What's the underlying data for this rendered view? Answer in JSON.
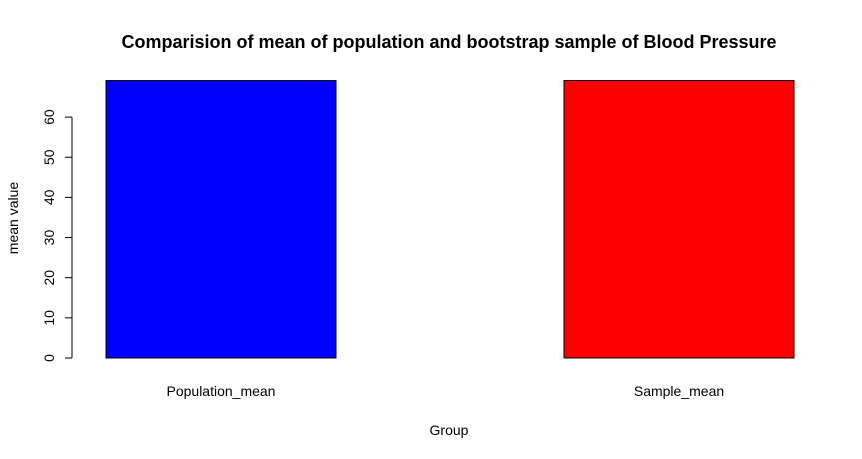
{
  "chart_data": {
    "type": "bar",
    "title": "Comparision of mean of population and bootstrap sample of Blood Pressure",
    "xlabel": "Group",
    "ylabel": "mean value",
    "categories": [
      "Population_mean",
      "Sample_mean"
    ],
    "values": [
      69.1,
      69.1
    ],
    "colors": [
      "#0000FF",
      "#FF0000"
    ],
    "ylim": [
      0,
      69.1
    ],
    "yticks": [
      0,
      10,
      20,
      30,
      40,
      50,
      60
    ],
    "grid": false,
    "legend": "none"
  }
}
